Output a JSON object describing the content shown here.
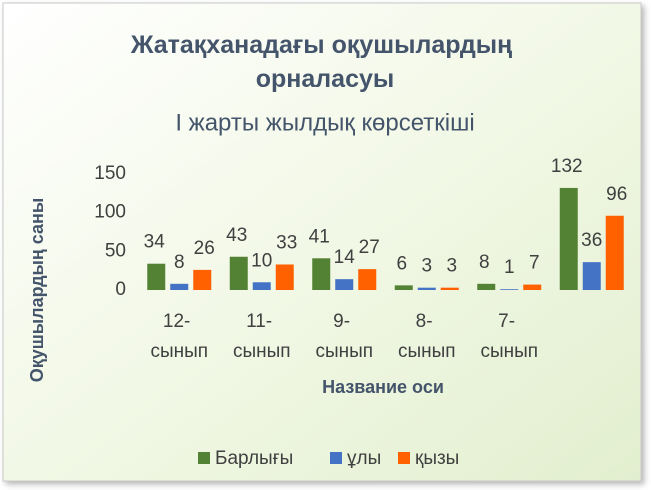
{
  "chart_data": {
    "type": "bar",
    "title": "Жатақханадағы оқушылардың орналасуы",
    "subtitle": "І жарты жылдық көрсеткіші",
    "y_label": "Оқушылардың саны",
    "x_label": "Название оси",
    "categories": [
      "12- сынып",
      "11- сынып",
      "9- сынып",
      "8- сынып",
      "7- сынып",
      null
    ],
    "series": [
      {
        "name": "Барлығы",
        "color": "#548235",
        "values": [
          34,
          43,
          41,
          6,
          8,
          132
        ]
      },
      {
        "name": "ұлы",
        "color": "#4472c4",
        "values": [
          8,
          10,
          14,
          3,
          1,
          36
        ]
      },
      {
        "name": "қызы",
        "color": "#ff6000",
        "values": [
          26,
          33,
          27,
          3,
          7,
          96
        ]
      }
    ],
    "ylim": [
      0,
      150
    ],
    "yticks": [
      0,
      50,
      100,
      150
    ],
    "grid": false,
    "legend": "bottom"
  }
}
